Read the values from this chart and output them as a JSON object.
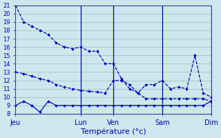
{
  "xlabel": "Température (°c)",
  "ylim": [
    8,
    21
  ],
  "yticks": [
    8,
    9,
    10,
    11,
    12,
    13,
    14,
    15,
    16,
    17,
    18,
    19,
    20,
    21
  ],
  "background_color": "#cce8ec",
  "grid_color": "#9ab8c8",
  "line_color": "#0000bb",
  "day_labels": [
    "Jeu",
    "Lun",
    "Ven",
    "Sam",
    "Dim"
  ],
  "day_positions": [
    0,
    8,
    12,
    18,
    24
  ],
  "dividers": [
    8,
    12,
    18,
    24
  ],
  "line1_x": [
    0,
    1,
    2,
    3,
    4,
    5,
    6,
    7,
    8,
    9,
    10,
    11,
    12,
    13,
    14,
    15,
    16,
    17,
    18,
    19,
    20,
    21,
    22,
    23,
    24
  ],
  "line1_y": [
    21,
    19,
    18.5,
    18,
    17.5,
    16.5,
    16,
    15.8,
    16,
    15.5,
    15.5,
    14,
    14,
    12.2,
    11,
    10.5,
    11.5,
    11.5,
    12,
    11,
    11.2,
    11,
    15,
    10.5,
    10
  ],
  "line2_x": [
    0,
    1,
    2,
    3,
    4,
    5,
    6,
    7,
    8,
    9,
    10,
    11,
    12,
    13,
    14,
    15,
    16,
    17,
    18,
    19,
    20,
    21,
    22,
    23,
    24
  ],
  "line2_y": [
    13,
    12.8,
    12.5,
    12.2,
    12,
    11.5,
    11.2,
    11,
    10.8,
    10.7,
    10.6,
    10.5,
    12,
    12,
    11.5,
    10.5,
    9.8,
    9.8,
    9.8,
    9.8,
    9.8,
    9.8,
    9.8,
    9.8,
    9.5
  ],
  "line3_x": [
    0,
    1,
    2,
    3,
    4,
    5,
    6,
    7,
    8,
    9,
    10,
    11,
    12,
    13,
    14,
    15,
    16,
    17,
    18,
    19,
    20,
    21,
    22,
    23,
    24
  ],
  "line3_y": [
    9,
    9.5,
    9,
    8.2,
    9.5,
    9,
    9,
    9,
    9,
    9,
    9,
    9,
    9,
    9,
    9,
    9,
    9,
    9,
    9,
    9,
    9,
    9,
    9,
    9,
    9.5
  ]
}
